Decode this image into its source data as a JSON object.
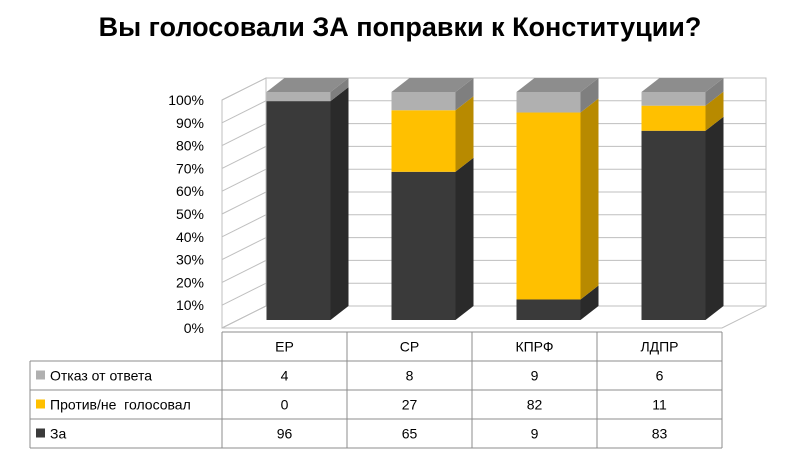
{
  "chart_data": {
    "type": "bar",
    "stacked": true,
    "three_d": true,
    "percent_stacked": true,
    "title": "Вы голосовали ЗА поправки к Конституции?",
    "categories": [
      "ЕР",
      "СР",
      "КПРФ",
      "ЛДПР"
    ],
    "series": [
      {
        "name": "За",
        "values": [
          96,
          65,
          9,
          83
        ]
      },
      {
        "name": "Против/не  голосовал",
        "values": [
          0,
          27,
          82,
          11
        ]
      },
      {
        "name": "Отказ от ответа",
        "values": [
          4,
          8,
          9,
          6
        ]
      }
    ],
    "colors": {
      "За": "#3a3a3a",
      "Против/не  голосовал": "#ffc000",
      "Отказ от ответа": "#b0b0b0"
    },
    "ylim": [
      0,
      100
    ],
    "yticks": [
      "0%",
      "10%",
      "20%",
      "30%",
      "40%",
      "50%",
      "60%",
      "70%",
      "80%",
      "90%",
      "100%"
    ],
    "legend": "data-table",
    "grid": true
  }
}
